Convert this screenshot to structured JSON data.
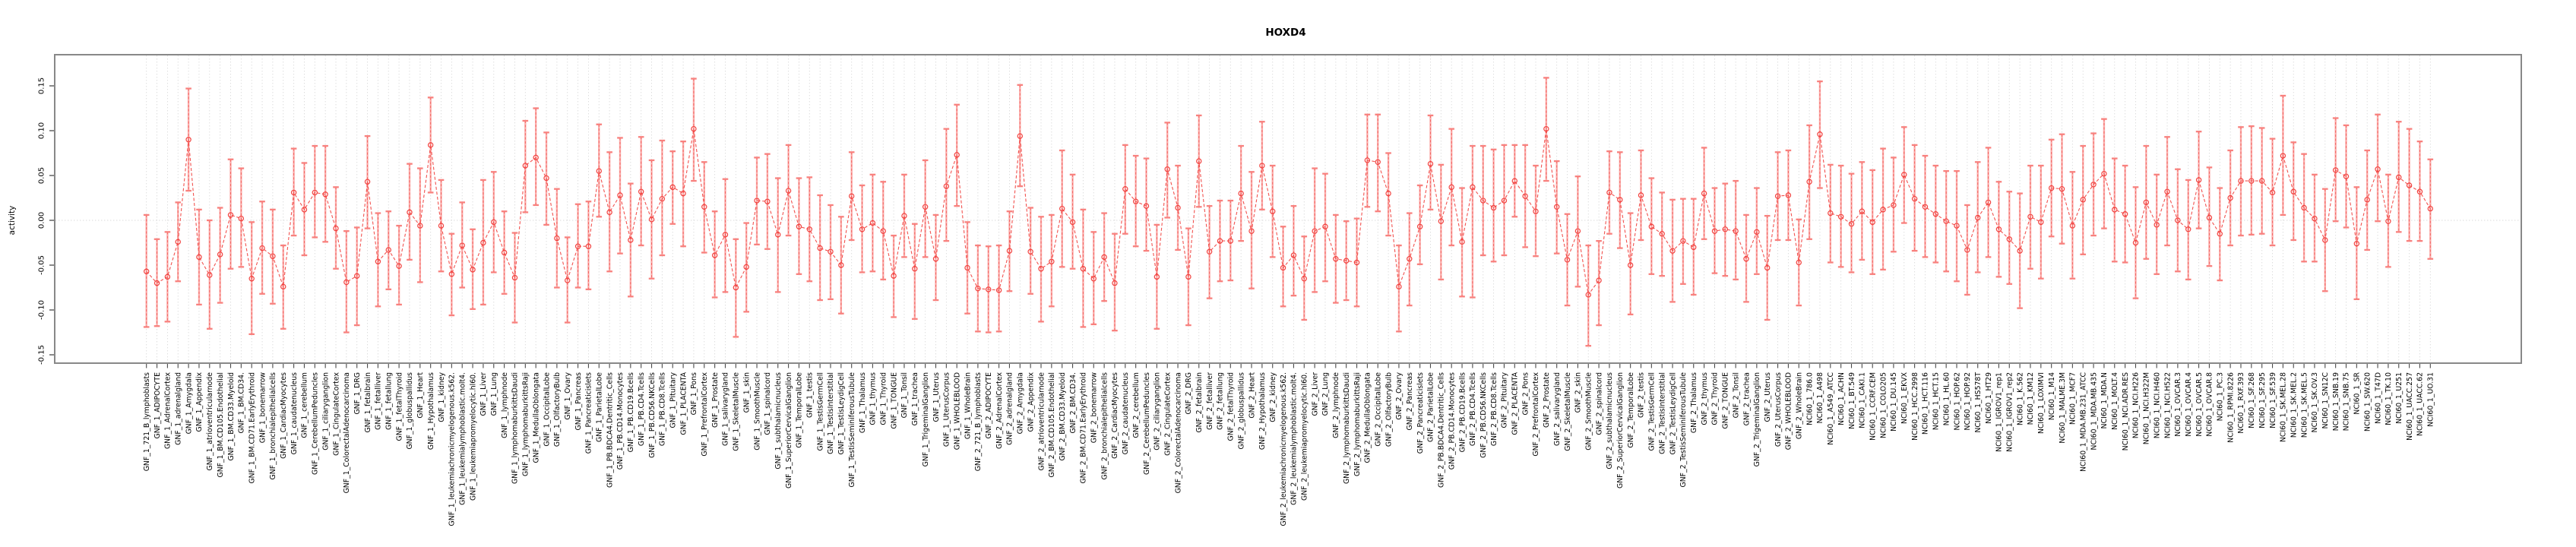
{
  "title": "HOXD4",
  "y_axis": {
    "label": "activity",
    "tick_labels": [
      "0.15",
      "0.10",
      "0.05",
      "0.00",
      "-0.05",
      "-0.10",
      "-0.15"
    ],
    "tick_values": [
      0.15,
      0.1,
      0.05,
      0.0,
      -0.05,
      -0.1,
      -0.15
    ]
  },
  "colors": {
    "point": "#f2423f",
    "line": "#f2524f",
    "error_stem": "#fbadab",
    "error_dash": "#f2615e",
    "error_cap": "#f8817e",
    "grid": "#d9d9d9",
    "zero_line": "#d9d9d9",
    "box": "#888888",
    "tick": "#4a4a4a",
    "text": "#000000"
  },
  "chart_data": {
    "type": "line",
    "title": "HOXD4",
    "xlabel": "",
    "ylabel": "activity",
    "ylim": [
      -0.16,
      0.185
    ],
    "yticks": [
      0.15,
      0.1,
      0.05,
      0.0,
      -0.05,
      -0.1,
      -0.15
    ],
    "legend": "none",
    "grid": "vertical dotted line per category; horizontal dotted line at y=0",
    "marker": "open-circle",
    "error_bars": true,
    "categories": [
      "GNF_1_721_B_lymphoblasts",
      "GNF_1_ADIPOCYTE",
      "GNF_1_AdrenalCortex",
      "GNF_1_adrenalgland",
      "GNF_1_Amygdala",
      "GNF_1_Appendix",
      "GNF_1_atrioventricularnode",
      "GNF_1_BM.CD105.Endothelial",
      "GNF_1_BM.CD33.Myeloid",
      "GNF_1_BM.CD34.",
      "GNF_1_BM.CD71.EarlyErythroid",
      "GNF_1_bonemarrow",
      "GNF_1_bronchialepithelialcells",
      "GNF_1_CardiacMyocytes",
      "GNF_1_caudatenucleus",
      "GNF_1_cerebellum",
      "GNF_1_CerebellumPeduncles",
      "GNF_1_ciliaryganglion",
      "GNF_1_CingulateCortex",
      "GNF_1_ColorectalAdenocarcinoma",
      "GNF_1_DRG",
      "GNF_1_fetalbrain",
      "GNF_1_fetalliver",
      "GNF_1_fetallung",
      "GNF_1_fetalThyroid",
      "GNF_1_globuspallidus",
      "GNF_1_Heart",
      "GNF_1_Hypothalamus",
      "GNF_1_kidney",
      "GNF_1_leukemiachronicmyelogenous.k562.",
      "GNF_1_leukemialymphoblastic.molt4.",
      "GNF_1_leukemiapromyelocytic.hl60.",
      "GNF_1_Liver",
      "GNF_1_Lung",
      "GNF_1_lymphnode",
      "GNF_1_lymphomaburkittsDaudi",
      "GNF_1_lymphomaburkittsRaji",
      "GNF_1_MedullaOblongata",
      "GNF_1_OccipitalLobe",
      "GNF_1_OlfactoryBulb",
      "GNF_1_Ovary",
      "GNF_1_Pancreas",
      "GNF_1_Pancreaticislets",
      "GNF_1_ParietalLobe",
      "GNF_1_PB.BDCA4.Dentritic_Cells",
      "GNF_1_PB.CD14.Monocytes",
      "GNF_1_PB.CD19.Bcells",
      "GNF_1_PB.CD4.Tcells",
      "GNF_1_PB.CD56.NKCells",
      "GNF_1_PB.CD8.Tcells",
      "GNF_1_Pituitary",
      "GNF_1_PLACENTA",
      "GNF_1_Pons",
      "GNF_1_PrefrontalCortex",
      "GNF_1_Prostate",
      "GNF_1_salivarygland",
      "GNF_1_SkeletalMuscle",
      "GNF_1_skin",
      "GNF_1_SmoothMuscle",
      "GNF_1_spinalcord",
      "GNF_1_subthalamicnucleus",
      "GNF_1_SuperiorCervicalGanglion",
      "GNF_1_TemporalLobe",
      "GNF_1_testis",
      "GNF_1_TestisGermCell",
      "GNF_1_TestisInterstitial",
      "GNF_1_TestisLeydigCell",
      "GNF_1_TestisSeminiferousTubule",
      "GNF_1_Thalamus",
      "GNF_1_thymus",
      "GNF_1_Thyroid",
      "GNF_1_TONGUE",
      "GNF_1_Tonsil",
      "GNF_1_trachea",
      "GNF_1_TrigeminalGanglion",
      "GNF_1_Uterus",
      "GNF_1_UterusCorpus",
      "GNF_1_WHOLEBLOOD",
      "GNF_1_WholeBrain",
      "GNF_2_721_B_lymphoblasts",
      "GNF_2_ADIPOCYTE",
      "GNF_2_AdrenalCortex",
      "GNF_2_adrenalgland",
      "GNF_2_Amygdala",
      "GNF_2_Appendix",
      "GNF_2_atrioventricularnode",
      "GNF_2_BM.CD105.Endothelial",
      "GNF_2_BM.CD33.Myeloid",
      "GNF_2_BM.CD34.",
      "GNF_2_BM.CD71.EarlyErythroid",
      "GNF_2_bonemarrow",
      "GNF_2_bronchialepithelialcells",
      "GNF_2_CardiacMyocytes",
      "GNF_2_caudatenucleus",
      "GNF_2_cerebellum",
      "GNF_2_CerebellumPeduncles",
      "GNF_2_ciliaryganglion",
      "GNF_2_CingulateCortex",
      "GNF_2_ColorectalAdenocarcinoma",
      "GNF_2_DRG",
      "GNF_2_fetalbrain",
      "GNF_2_fetalliver",
      "GNF_2_fetallung",
      "GNF_2_fetalThyroid",
      "GNF_2_globuspallidus",
      "GNF_2_Heart",
      "GNF_2_Hypothalamus",
      "GNF_2_kidney",
      "GNF_2_leukemiachronicmyelogenous.k562.",
      "GNF_2_leukemialymphoblastic.molt4.",
      "GNF_2_leukemiapromyelocytic.hl60.",
      "GNF_2_Liver",
      "GNF_2_Lung",
      "GNF_2_lymphnode",
      "GNF_2_lymphomaburkittsDaudi",
      "GNF_2_lymphomaburkittsRaji",
      "GNF_2_MedullaOblongata",
      "GNF_2_OccipitalLobe",
      "GNF_2_OlfactoryBulb",
      "GNF_2_Ovary",
      "GNF_2_Pancreas",
      "GNF_2_Pancreaticislets",
      "GNF_2_ParietalLobe",
      "GNF_2_PB.BDCA4.Dentritic_Cells",
      "GNF_2_PB.CD14.Monocytes",
      "GNF_2_PB.CD19.Bcells",
      "GNF_2_PB.CD4.Tcells",
      "GNF_2_PB.CD56.NKCells",
      "GNF_2_PB.CD8.Tcells",
      "GNF_2_Pituitary",
      "GNF_2_PLACENTA",
      "GNF_2_Pons",
      "GNF_2_PrefrontalCortex",
      "GNF_2_Prostate",
      "GNF_2_salivarygland",
      "GNF_2_SkeletalMuscle",
      "GNF_2_skin",
      "GNF_2_SmoothMuscle",
      "GNF_2_spinalcord",
      "GNF_2_subthalamicnucleus",
      "GNF_2_SuperiorCervicalGanglion",
      "GNF_2_TemporalLobe",
      "GNF_2_testis",
      "GNF_2_TestisGermCell",
      "GNF_2_TestisInterstitial",
      "GNF_2_TestisLeydigCell",
      "GNF_2_TestisSeminiferousTubule",
      "GNF_2_Thalamus",
      "GNF_2_thymus",
      "GNF_2_Thyroid",
      "GNF_2_TONGUE",
      "GNF_2_Tonsil",
      "GNF_2_trachea",
      "GNF_2_TrigeminalGanglion",
      "GNF_2_Uterus",
      "GNF_2_UterusCorpus",
      "GNF_2_WHOLEBLOOD",
      "GNF_2_WholeBrain",
      "NCI60_1_786.0",
      "NCI60_1_A498",
      "NCI60_1_A549_ATCC",
      "NCI60_1_ACHN",
      "NCI60_1_BT.549",
      "NCI60_1_CAKI.1",
      "NCI60_1_CCRF.CEM",
      "NCI60_1_COLO205",
      "NCI60_1_DU.145",
      "NCI60_1_EKVX",
      "NCI60_1_HCC.2998",
      "NCI60_1_HCT.116",
      "NCI60_1_HCT.15",
      "NCI60_1_HL.60",
      "NCI60_1_HOP.62",
      "NCI60_1_HOP.92",
      "NCI60_1_HS578T",
      "NCI60_1_HT29",
      "NCI60_1_IGROV1_rep1",
      "NCI60_1_IGROV1_rep2",
      "NCI60_1_K.562",
      "NCI60_1_KM12",
      "NCI60_1_LOXIMVI",
      "NCI60_1_M14",
      "NCI60_1_MALME.3M",
      "NCI60_1_MCF7",
      "NCI60_1_MDA.MB.231_ATCC",
      "NCI60_1_MDA.MB.435",
      "NCI60_1_MDA.N",
      "NCI60_1_MOLT.4",
      "NCI60_1_NCI.ADR.RES",
      "NCI60_1_NCI.H226",
      "NCI60_1_NCI.H322M",
      "NCI60_1_NCI.H460",
      "NCI60_1_NCI.H522",
      "NCI60_1_OVCAR.3",
      "NCI60_1_OVCAR.4",
      "NCI60_1_OVCAR.5",
      "NCI60_1_OVCAR.8",
      "NCI60_1_PC.3",
      "NCI60_1_RPMI.8226",
      "NCI60_1_RXF.393",
      "NCI60_1_SF.268",
      "NCI60_1_SF.295",
      "NCI60_1_SF.539",
      "NCI60_1_SK.MEL.28",
      "NCI60_1_SK.MEL.2",
      "NCI60_1_SK.MEL.5",
      "NCI60_1_SK.OV.3",
      "NCI60_1_SN12C",
      "NCI60_1_SNB.19",
      "NCI60_1_SNB.75",
      "NCI60_1_SR",
      "NCI60_1_SW.620",
      "NCI60_1_T47D",
      "NCI60_1_TK.10",
      "NCI60_1_U251",
      "NCI60_1_UACC.257",
      "NCI60_1_UACC.62",
      "NCI60_1_UO.31"
    ],
    "series": [
      {
        "name": "activity",
        "values": [
          -0.057,
          -0.07,
          -0.063,
          -0.024,
          0.09,
          -0.041,
          -0.061,
          -0.038,
          0.006,
          0.002,
          -0.065,
          -0.031,
          -0.04,
          -0.074,
          0.031,
          0.012,
          0.031,
          0.029,
          -0.009,
          -0.069,
          -0.062,
          0.043,
          -0.046,
          -0.033,
          -0.051,
          0.009,
          -0.006,
          0.084,
          -0.006,
          -0.06,
          -0.028,
          -0.055,
          -0.025,
          -0.002,
          -0.036,
          -0.064,
          0.061,
          0.07,
          0.047,
          -0.02,
          -0.067,
          -0.029,
          -0.029,
          0.055,
          0.009,
          0.028,
          -0.022,
          0.032,
          0.001,
          0.024,
          0.037,
          0.03,
          0.102,
          0.015,
          -0.039,
          -0.016,
          -0.075,
          -0.052,
          0.022,
          0.021,
          -0.016,
          0.033,
          -0.007,
          -0.01,
          -0.031,
          -0.035,
          -0.05,
          0.027,
          -0.01,
          -0.003,
          -0.012,
          -0.062,
          0.005,
          -0.054,
          0.015,
          -0.043,
          0.038,
          0.073,
          -0.053,
          -0.076,
          -0.077,
          -0.078,
          -0.034,
          0.094,
          -0.035,
          -0.054,
          -0.046,
          0.013,
          -0.002,
          -0.054,
          -0.065,
          -0.041,
          -0.07,
          0.035,
          0.021,
          0.016,
          -0.063,
          0.057,
          0.014,
          -0.063,
          0.066,
          -0.035,
          -0.023,
          -0.023,
          0.03,
          -0.012,
          0.061,
          0.01,
          -0.053,
          -0.039,
          -0.065,
          -0.012,
          -0.007,
          -0.043,
          -0.045,
          -0.047,
          0.067,
          0.065,
          0.03,
          -0.074,
          -0.043,
          -0.007,
          0.063,
          -0.001,
          0.037,
          -0.024,
          0.037,
          0.022,
          0.014,
          0.022,
          0.044,
          0.027,
          0.01,
          0.102,
          0.015,
          -0.044,
          -0.012,
          -0.083,
          -0.067,
          0.031,
          0.023,
          -0.05,
          0.028,
          -0.007,
          -0.015,
          -0.034,
          -0.023,
          -0.03,
          0.03,
          -0.012,
          -0.01,
          -0.012,
          -0.043,
          -0.013,
          -0.053,
          0.027,
          0.028,
          -0.047,
          0.043,
          0.096,
          0.008,
          0.004,
          -0.004,
          0.01,
          -0.002,
          0.012,
          0.017,
          0.051,
          0.024,
          0.015,
          0.007,
          -0.001,
          -0.006,
          -0.033,
          0.003,
          0.02,
          -0.01,
          -0.021,
          -0.034,
          0.004,
          -0.002,
          0.036,
          0.035,
          -0.006,
          0.023,
          0.04,
          0.052,
          0.012,
          0.007,
          -0.025,
          0.02,
          -0.005,
          0.032,
          0.0,
          -0.01,
          0.045,
          0.003,
          -0.015,
          0.025,
          0.044,
          0.044,
          0.044,
          0.031,
          0.072,
          0.032,
          0.014,
          0.002,
          -0.022,
          0.056,
          0.049,
          -0.026,
          0.023,
          0.057,
          -0.001,
          0.048,
          0.039,
          0.032,
          0.013
        ]
      },
      {
        "name": "lower",
        "values": [
          -0.119,
          -0.118,
          -0.113,
          -0.068,
          0.033,
          -0.094,
          -0.121,
          -0.092,
          -0.054,
          -0.052,
          -0.127,
          -0.082,
          -0.093,
          -0.121,
          -0.017,
          -0.039,
          -0.019,
          -0.024,
          -0.054,
          -0.125,
          -0.117,
          -0.009,
          -0.096,
          -0.077,
          -0.094,
          -0.044,
          -0.069,
          0.031,
          -0.057,
          -0.106,
          -0.075,
          -0.099,
          -0.094,
          -0.058,
          -0.082,
          -0.114,
          0.009,
          0.017,
          -0.005,
          -0.075,
          -0.114,
          -0.075,
          -0.077,
          0.004,
          -0.057,
          -0.037,
          -0.085,
          -0.028,
          -0.065,
          -0.039,
          -0.004,
          -0.029,
          0.044,
          -0.036,
          -0.086,
          -0.08,
          -0.13,
          -0.102,
          -0.027,
          -0.032,
          -0.08,
          -0.017,
          -0.06,
          -0.068,
          -0.089,
          -0.088,
          -0.104,
          -0.022,
          -0.058,
          -0.057,
          -0.066,
          -0.108,
          -0.041,
          -0.11,
          -0.041,
          -0.089,
          -0.023,
          0.016,
          -0.104,
          -0.124,
          -0.125,
          -0.124,
          -0.079,
          0.038,
          -0.082,
          -0.113,
          -0.096,
          -0.052,
          -0.054,
          -0.119,
          -0.116,
          -0.09,
          -0.123,
          -0.015,
          -0.029,
          -0.034,
          -0.121,
          0.003,
          -0.033,
          -0.117,
          0.015,
          -0.087,
          -0.068,
          -0.067,
          -0.023,
          -0.076,
          0.012,
          -0.041,
          -0.096,
          -0.084,
          -0.111,
          -0.08,
          -0.068,
          -0.092,
          -0.089,
          -0.096,
          0.015,
          0.01,
          -0.017,
          -0.124,
          -0.095,
          -0.049,
          0.012,
          -0.066,
          -0.028,
          -0.085,
          -0.086,
          -0.039,
          -0.046,
          -0.039,
          0.004,
          -0.03,
          -0.04,
          0.044,
          -0.037,
          -0.095,
          -0.074,
          -0.14,
          -0.117,
          -0.015,
          -0.031,
          -0.105,
          -0.022,
          -0.06,
          -0.062,
          -0.091,
          -0.071,
          -0.083,
          -0.021,
          -0.059,
          -0.062,
          -0.066,
          -0.091,
          -0.06,
          -0.111,
          -0.022,
          -0.022,
          -0.095,
          -0.021,
          0.036,
          -0.047,
          -0.052,
          -0.058,
          -0.044,
          -0.06,
          -0.055,
          -0.035,
          -0.003,
          -0.034,
          -0.041,
          -0.047,
          -0.057,
          -0.068,
          -0.083,
          -0.058,
          -0.041,
          -0.063,
          -0.071,
          -0.098,
          -0.054,
          -0.065,
          -0.018,
          -0.026,
          -0.065,
          -0.038,
          -0.017,
          -0.009,
          -0.046,
          -0.047,
          -0.087,
          -0.043,
          -0.06,
          -0.028,
          -0.057,
          -0.066,
          -0.009,
          -0.051,
          -0.067,
          -0.028,
          -0.017,
          -0.016,
          -0.015,
          -0.028,
          0.006,
          -0.022,
          -0.046,
          -0.046,
          -0.079,
          -0.001,
          -0.008,
          -0.088,
          -0.033,
          -0.001,
          -0.052,
          -0.013,
          -0.023,
          -0.023,
          -0.043
        ]
      },
      {
        "name": "upper",
        "values": [
          0.006,
          -0.021,
          -0.013,
          0.02,
          0.147,
          0.012,
          0.0,
          0.014,
          0.068,
          0.058,
          -0.002,
          0.021,
          0.012,
          -0.028,
          0.08,
          0.064,
          0.083,
          0.083,
          0.037,
          -0.012,
          -0.008,
          0.094,
          0.008,
          0.01,
          -0.006,
          0.063,
          0.058,
          0.137,
          0.045,
          -0.015,
          0.02,
          -0.01,
          0.045,
          0.054,
          0.01,
          -0.014,
          0.111,
          0.125,
          0.098,
          0.035,
          -0.019,
          0.018,
          0.021,
          0.107,
          0.076,
          0.092,
          0.041,
          0.093,
          0.067,
          0.089,
          0.077,
          0.088,
          0.158,
          0.065,
          0.01,
          0.046,
          -0.021,
          -0.003,
          0.07,
          0.074,
          0.047,
          0.084,
          0.047,
          0.048,
          0.028,
          0.017,
          0.004,
          0.076,
          0.039,
          0.051,
          0.043,
          -0.017,
          0.051,
          -0.004,
          0.067,
          0.006,
          0.102,
          0.129,
          -0.002,
          -0.028,
          -0.029,
          -0.028,
          0.01,
          0.151,
          0.014,
          0.004,
          0.006,
          0.078,
          0.051,
          0.012,
          -0.013,
          0.008,
          -0.015,
          0.084,
          0.072,
          0.069,
          -0.005,
          0.109,
          0.061,
          -0.009,
          0.117,
          0.016,
          0.022,
          0.022,
          0.083,
          0.054,
          0.11,
          0.061,
          -0.007,
          0.016,
          -0.018,
          0.058,
          0.052,
          0.006,
          -0.001,
          0.002,
          0.118,
          0.118,
          0.075,
          -0.028,
          0.008,
          0.039,
          0.117,
          0.062,
          0.102,
          0.036,
          0.083,
          0.083,
          0.079,
          0.084,
          0.084,
          0.084,
          0.061,
          0.159,
          0.066,
          0.007,
          0.049,
          -0.028,
          -0.023,
          0.077,
          0.076,
          0.008,
          0.078,
          0.047,
          0.031,
          0.023,
          0.024,
          0.024,
          0.081,
          0.036,
          0.041,
          0.044,
          0.006,
          0.036,
          0.005,
          0.076,
          0.078,
          0.001,
          0.106,
          0.155,
          0.062,
          0.061,
          0.052,
          0.065,
          0.056,
          0.08,
          0.07,
          0.104,
          0.084,
          0.072,
          0.061,
          0.055,
          0.055,
          0.017,
          0.065,
          0.081,
          0.043,
          0.032,
          0.03,
          0.061,
          0.061,
          0.09,
          0.096,
          0.054,
          0.083,
          0.097,
          0.113,
          0.069,
          0.061,
          0.037,
          0.083,
          0.051,
          0.093,
          0.057,
          0.045,
          0.099,
          0.059,
          0.036,
          0.078,
          0.104,
          0.105,
          0.103,
          0.091,
          0.139,
          0.087,
          0.074,
          0.051,
          0.035,
          0.114,
          0.106,
          0.037,
          0.078,
          0.118,
          0.051,
          0.11,
          0.102,
          0.088,
          0.068
        ]
      }
    ]
  }
}
